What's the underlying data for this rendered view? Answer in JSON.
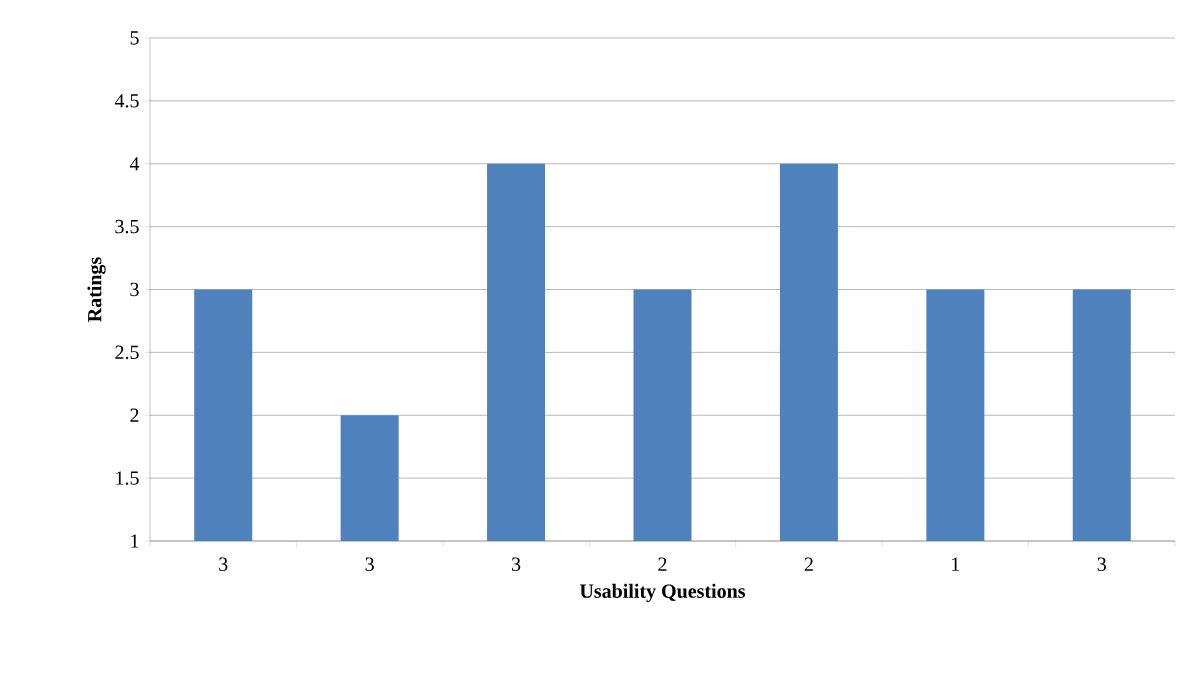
{
  "chart_data": {
    "type": "bar",
    "xlabel": "Usability Questions",
    "ylabel": "Ratings",
    "categories": [
      "3",
      "3",
      "3",
      "2",
      "2",
      "1",
      "3"
    ],
    "values": [
      3,
      2,
      4,
      3,
      4,
      3,
      3
    ],
    "color": "#4f81bd",
    "ylim": [
      1,
      5
    ],
    "yticks": [
      1,
      1.5,
      2,
      2.5,
      3,
      3.5,
      4,
      4.5,
      5
    ],
    "grid": "y"
  }
}
